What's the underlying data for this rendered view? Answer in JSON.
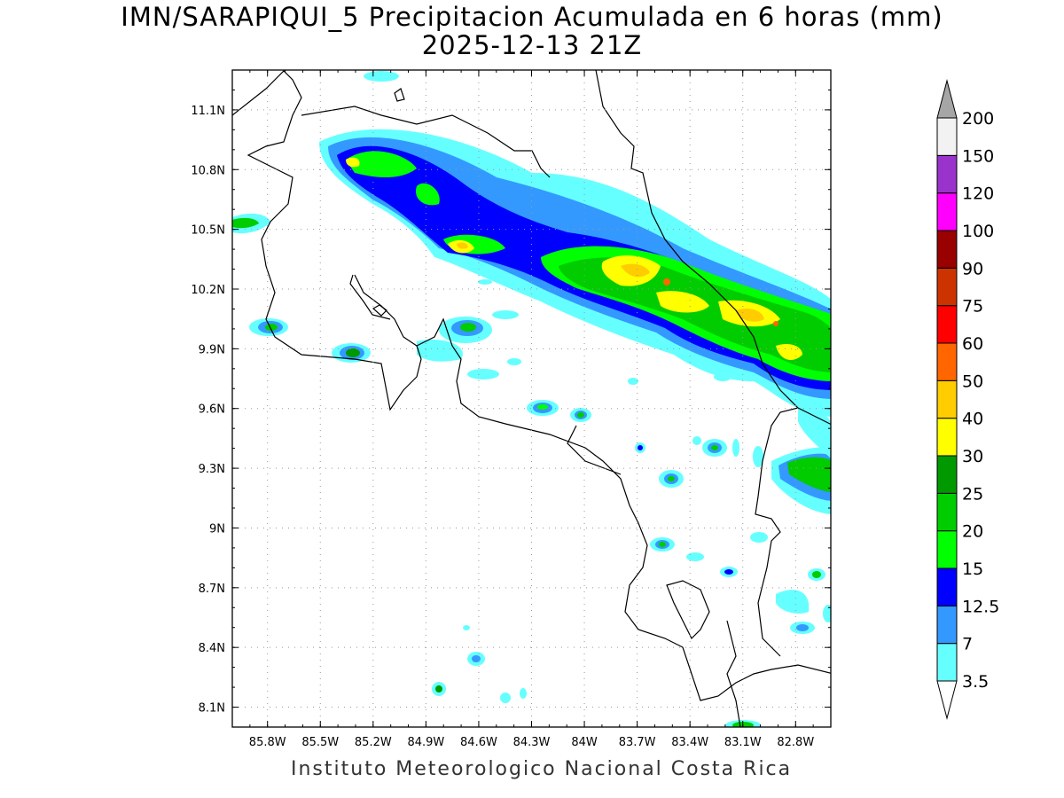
{
  "title_line1": "IMN/SARAPIQUI_5 Precipitacion Acumulada en 6 horas (mm)",
  "title_line2": "2025-12-13 21Z",
  "footer": "Instituto Meteorologico Nacional Costa Rica",
  "map": {
    "lon_range": [
      -86.0,
      -82.6
    ],
    "lat_range": [
      8.0,
      11.3
    ],
    "x_ticks": [
      "85.8W",
      "85.5W",
      "85.2W",
      "84.9W",
      "84.6W",
      "84.3W",
      "84W",
      "83.7W",
      "83.4W",
      "83.1W",
      "82.8W"
    ],
    "x_tick_lons": [
      -85.8,
      -85.5,
      -85.2,
      -84.9,
      -84.6,
      -84.3,
      -84.0,
      -83.7,
      -83.4,
      -83.1,
      -82.8
    ],
    "y_ticks": [
      "8.1N",
      "8.4N",
      "8.7N",
      "9N",
      "9.3N",
      "9.6N",
      "9.9N",
      "10.2N",
      "10.5N",
      "10.8N",
      "11.1N"
    ],
    "y_tick_lats": [
      8.1,
      8.4,
      8.7,
      9.0,
      9.3,
      9.6,
      9.9,
      10.2,
      10.5,
      10.8,
      11.1
    ],
    "grid": "dotted"
  },
  "colorbar": {
    "labels": [
      "3.5",
      "7",
      "12.5",
      "15",
      "20",
      "25",
      "30",
      "40",
      "50",
      "60",
      "75",
      "90",
      "100",
      "120",
      "150",
      "200"
    ],
    "colors": [
      "#66ffff",
      "#3399ff",
      "#0000ff",
      "#00ff00",
      "#00cc00",
      "#009900",
      "#ffff00",
      "#ffcc00",
      "#ff6600",
      "#ff0000",
      "#cc3300",
      "#990000",
      "#ff00ff",
      "#9933cc",
      "#f2f2f2"
    ],
    "over_color": "#a6a6a6",
    "under_color": "#ffffff"
  }
}
